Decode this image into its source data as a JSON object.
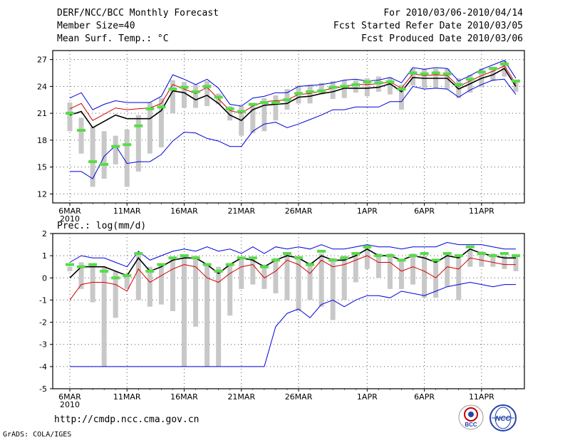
{
  "header": {
    "title": "DERF/NCC/BCC Monthly Forecast",
    "member_size": "Member Size=40",
    "top_variable": "Mean Surf. Temp.: °C",
    "forecast_range": "For 2010/03/06-2010/04/14",
    "started_date": "Fcst Started Refer Date 2010/03/05",
    "produced_date": "Fcst Produced Date 2010/03/06"
  },
  "footer": {
    "url": "http://cmdp.ncc.cma.gov.cn",
    "credit": "GrADS: COLA/IGES",
    "logo_bcc": "BCC",
    "logo_ncc": "NCC"
  },
  "colors": {
    "ensemble_mean": "#000000",
    "ensemble_max": "#0000dd",
    "ensemble_min": "#0000dd",
    "median_line": "#d40000",
    "spread_bar": "#c8c8c8",
    "member_dash": "#55dd44"
  },
  "chart_data": [
    {
      "type": "line",
      "title": "Mean Surf. Temp.: °C",
      "x_tick_labels": [
        "6MAR\n2010",
        "11MAR",
        "16MAR",
        "21MAR",
        "26MAR",
        "1APR",
        "6APR",
        "11APR"
      ],
      "x_tick_days": [
        0,
        5,
        10,
        15,
        20,
        26,
        31,
        36
      ],
      "ylim": [
        11,
        28
      ],
      "yticks": [
        12,
        15,
        18,
        21,
        24,
        27
      ],
      "days": 40,
      "series": [
        {
          "name": "ensemble-max",
          "color": "#0000dd",
          "values": [
            22.7,
            23.3,
            21.4,
            22.0,
            22.4,
            22.2,
            22.2,
            22.2,
            22.9,
            25.3,
            24.8,
            24.2,
            24.8,
            23.8,
            22.0,
            21.8,
            22.7,
            22.9,
            23.3,
            23.3,
            24.0,
            24.1,
            24.2,
            24.4,
            24.7,
            24.8,
            24.6,
            24.7,
            25.0,
            24.4,
            26.1,
            25.9,
            26.1,
            26.0,
            24.6,
            25.2,
            25.9,
            26.4,
            26.9,
            24.9
          ]
        },
        {
          "name": "median",
          "color": "#d40000",
          "values": [
            21.5,
            22.1,
            20.2,
            20.9,
            21.6,
            21.4,
            21.5,
            21.6,
            22.1,
            24.2,
            23.7,
            23.2,
            23.9,
            22.6,
            21.3,
            21.0,
            21.8,
            22.3,
            22.4,
            22.5,
            23.1,
            23.2,
            23.5,
            23.8,
            24.0,
            24.2,
            24.2,
            24.3,
            24.5,
            23.8,
            25.4,
            25.2,
            25.3,
            25.2,
            24.0,
            24.6,
            25.2,
            25.7,
            26.3,
            24.3
          ]
        },
        {
          "name": "ensemble-mean",
          "color": "#000000",
          "values": [
            20.8,
            21.2,
            19.4,
            20.1,
            20.8,
            20.4,
            20.4,
            20.4,
            21.3,
            23.5,
            23.3,
            22.5,
            23.0,
            22.1,
            20.8,
            20.2,
            21.4,
            21.9,
            22.0,
            22.1,
            22.8,
            22.9,
            23.2,
            23.4,
            23.8,
            23.8,
            23.8,
            23.9,
            24.3,
            23.4,
            25.0,
            24.9,
            24.9,
            24.9,
            23.7,
            24.3,
            24.9,
            25.3,
            26.0,
            24.0
          ]
        },
        {
          "name": "ensemble-min",
          "color": "#0000dd",
          "values": [
            14.5,
            14.5,
            13.7,
            16.2,
            17.4,
            15.4,
            15.6,
            15.6,
            16.4,
            17.9,
            18.9,
            18.8,
            18.2,
            17.9,
            17.3,
            17.3,
            19.0,
            19.8,
            20.0,
            19.4,
            19.8,
            20.3,
            20.8,
            21.4,
            21.4,
            21.7,
            21.7,
            21.7,
            22.3,
            22.3,
            24.0,
            23.7,
            23.8,
            23.7,
            22.8,
            23.6,
            24.2,
            24.7,
            24.8,
            23.1
          ]
        }
      ],
      "spread_bars": {
        "low": [
          19.0,
          16.5,
          12.8,
          13.7,
          15.3,
          12.8,
          14.5,
          16.5,
          17.2,
          21.0,
          21.6,
          21.6,
          21.8,
          22.0,
          20.2,
          18.5,
          18.8,
          19.0,
          20.2,
          21.4,
          22.1,
          22.1,
          23.1,
          22.6,
          22.7,
          23.3,
          22.9,
          23.4,
          23.1,
          21.4,
          24.1,
          23.8,
          23.8,
          23.7,
          22.7,
          23.3,
          23.9,
          24.6,
          25.1,
          23.4
        ],
        "high": [
          22.2,
          20.5,
          19.5,
          19.0,
          18.5,
          19.2,
          20.8,
          22.2,
          22.7,
          24.7,
          24.5,
          24.2,
          24.6,
          23.2,
          21.8,
          21.8,
          22.1,
          22.7,
          23.0,
          23.7,
          24.1,
          24.2,
          24.4,
          24.6,
          24.7,
          24.7,
          24.9,
          25.1,
          25.0,
          24.2,
          26.0,
          26.0,
          26.0,
          26.0,
          24.9,
          25.3,
          26.0,
          26.2,
          26.9,
          24.6
        ]
      },
      "member_marks": [
        21.0,
        19.1,
        15.6,
        15.3,
        17.3,
        17.5,
        19.6,
        21.5,
        21.7,
        23.7,
        23.9,
        23.4,
        24.0,
        22.8,
        21.5,
        21.2,
        22.0,
        22.2,
        22.2,
        22.5,
        23.2,
        23.4,
        23.5,
        23.9,
        24.0,
        24.2,
        24.5,
        24.4,
        24.5,
        23.7,
        25.5,
        25.4,
        25.5,
        25.4,
        24.2,
        24.8,
        25.6,
        26.0,
        26.5,
        24.6
      ]
    },
    {
      "type": "line",
      "title": "Prec.: log(mm/d)",
      "x_tick_labels": [
        "6MAR\n2010",
        "11MAR",
        "16MAR",
        "21MAR",
        "26MAR",
        "1APR",
        "6APR",
        "11APR"
      ],
      "x_tick_days": [
        0,
        5,
        10,
        15,
        20,
        26,
        31,
        36
      ],
      "ylim": [
        -5,
        2
      ],
      "yticks": [
        -5,
        -4,
        -3,
        -2,
        -1,
        0,
        1,
        2
      ],
      "days": 40,
      "series": [
        {
          "name": "ensemble-max",
          "color": "#0000dd",
          "values": [
            0.7,
            1.0,
            0.9,
            0.9,
            0.7,
            0.5,
            1.2,
            0.8,
            1.0,
            1.2,
            1.3,
            1.2,
            1.4,
            1.2,
            1.3,
            1.1,
            1.4,
            1.1,
            1.4,
            1.3,
            1.4,
            1.3,
            1.5,
            1.3,
            1.3,
            1.4,
            1.5,
            1.4,
            1.4,
            1.3,
            1.4,
            1.4,
            1.4,
            1.6,
            1.5,
            1.5,
            1.5,
            1.4,
            1.3,
            1.3
          ]
        },
        {
          "name": "ensemble-mean",
          "color": "#000000",
          "values": [
            0.0,
            0.5,
            0.5,
            0.5,
            0.3,
            0.1,
            0.9,
            0.3,
            0.5,
            0.8,
            0.9,
            0.9,
            0.6,
            0.2,
            0.6,
            0.9,
            0.8,
            0.5,
            0.8,
            1.0,
            0.9,
            0.6,
            1.0,
            0.8,
            0.8,
            1.0,
            1.3,
            1.0,
            1.0,
            0.8,
            1.0,
            0.9,
            0.7,
            1.0,
            0.9,
            1.3,
            1.1,
            1.0,
            0.9,
            0.9
          ]
        },
        {
          "name": "median",
          "color": "#d40000",
          "values": [
            -1.0,
            -0.3,
            -0.2,
            -0.2,
            -0.3,
            -0.6,
            0.4,
            -0.2,
            0.1,
            0.4,
            0.6,
            0.5,
            0.0,
            -0.2,
            0.2,
            0.5,
            0.6,
            0.0,
            0.3,
            0.8,
            0.6,
            0.2,
            0.8,
            0.5,
            0.6,
            0.8,
            1.0,
            0.7,
            0.7,
            0.3,
            0.5,
            0.3,
            0.0,
            0.5,
            0.4,
            0.9,
            0.8,
            0.7,
            0.6,
            0.6
          ]
        },
        {
          "name": "ensemble-min",
          "color": "#0000dd",
          "values": [
            -4.0,
            -4.0,
            -4.0,
            -4.0,
            -4.0,
            -4.0,
            -4.0,
            -4.0,
            -4.0,
            -4.0,
            -4.0,
            -4.0,
            -4.0,
            -4.0,
            -4.0,
            -4.0,
            -4.0,
            -4.0,
            -2.2,
            -1.6,
            -1.4,
            -1.8,
            -1.2,
            -1.0,
            -1.3,
            -1.0,
            -0.8,
            -0.8,
            -0.9,
            -0.6,
            -0.7,
            -0.8,
            -0.6,
            -0.4,
            -0.3,
            -0.2,
            -0.3,
            -0.4,
            -0.3,
            -0.3
          ]
        }
      ],
      "spread_bars": {
        "low": [
          0.3,
          -0.5,
          -1.1,
          -4.0,
          -1.8,
          -0.5,
          -1.0,
          -1.3,
          -1.2,
          -1.5,
          -4.0,
          -2.2,
          -4.0,
          -4.0,
          -1.7,
          -0.5,
          -0.3,
          -0.5,
          -0.7,
          -1.0,
          -1.5,
          -1.0,
          -1.3,
          -1.9,
          -1.0,
          -0.2,
          0.4,
          0.0,
          -0.5,
          -0.5,
          -0.3,
          -0.9,
          -0.9,
          -0.4,
          -1.0,
          0.5,
          0.5,
          0.5,
          0.4,
          0.3
        ],
        "high": [
          0.5,
          0.7,
          0.6,
          0.5,
          0.3,
          0.2,
          1.1,
          0.5,
          0.6,
          0.9,
          1.0,
          1.0,
          0.6,
          0.5,
          0.6,
          0.9,
          0.9,
          0.6,
          0.9,
          1.1,
          1.0,
          0.7,
          1.1,
          0.9,
          1.0,
          1.1,
          1.4,
          1.1,
          1.1,
          0.8,
          1.1,
          1.0,
          0.8,
          1.1,
          1.0,
          1.3,
          1.2,
          1.1,
          1.0,
          1.0
        ]
      },
      "member_marks": [
        0.6,
        0.5,
        0.6,
        0.3,
        0.0,
        0.1,
        1.1,
        0.3,
        0.6,
        0.9,
        1.0,
        0.9,
        0.6,
        0.3,
        0.6,
        0.9,
        0.9,
        0.5,
        0.8,
        1.1,
        0.9,
        0.6,
        1.2,
        0.8,
        0.9,
        1.1,
        1.4,
        1.0,
        1.0,
        0.8,
        1.0,
        1.1,
        0.8,
        1.1,
        1.0,
        1.4,
        1.1,
        1.0,
        1.1,
        1.0
      ]
    }
  ]
}
